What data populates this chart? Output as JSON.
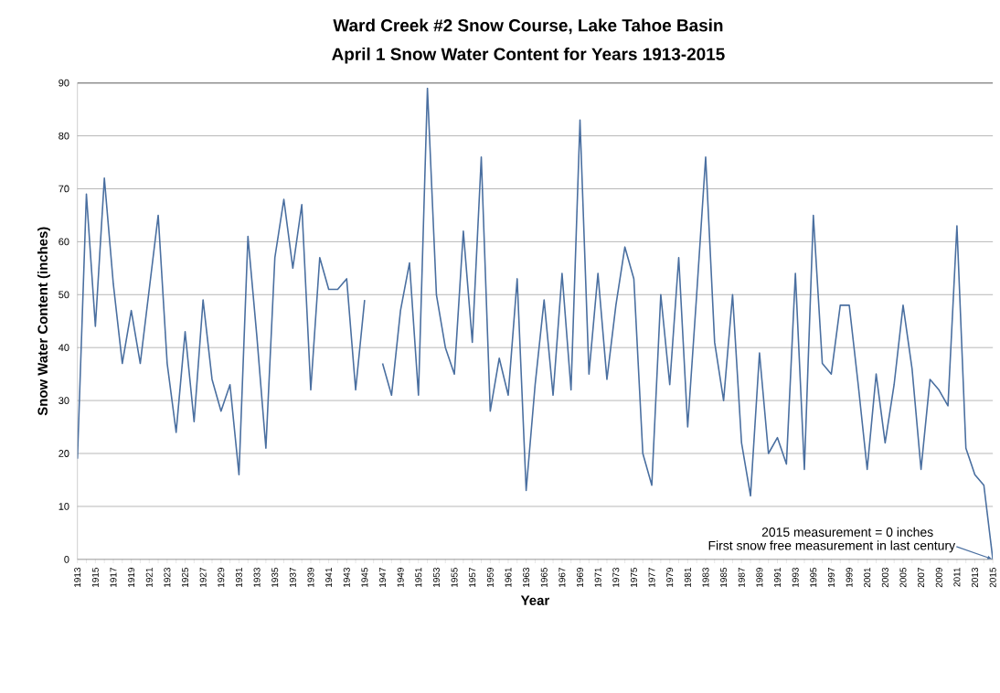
{
  "chart_data": {
    "type": "line",
    "title": "Ward Creek #2 Snow Course, Lake Tahoe Basin",
    "subtitle": "April 1 Snow Water Content for Years 1913-2015",
    "xlabel": "Year",
    "ylabel": "Snow Water Content (inches)",
    "categories": [
      "1913",
      null,
      "1915",
      null,
      "1917",
      null,
      "1919",
      null,
      "1921",
      null,
      "1923",
      null,
      "1925",
      null,
      "1927",
      null,
      "1929",
      null,
      "1931",
      null,
      "1933",
      null,
      "1935",
      null,
      "1937",
      null,
      "1939",
      null,
      "1941",
      null,
      "1943",
      null,
      "1945",
      null,
      "1947",
      null,
      "1949",
      null,
      "1951",
      null,
      "1953",
      null,
      "1955",
      null,
      "1957",
      null,
      "1959",
      null,
      "1961",
      null,
      "1963",
      null,
      "1965",
      null,
      "1967",
      null,
      "1969",
      null,
      "1971",
      null,
      "1973",
      null,
      "1975",
      null,
      "1977",
      null,
      "1979",
      null,
      "1981",
      null,
      "1983",
      null,
      "1985",
      null,
      "1987",
      null,
      "1989",
      null,
      "1991",
      null,
      "1993",
      null,
      "1995",
      null,
      "1997",
      null,
      "1999",
      null,
      "2001",
      null,
      "2003",
      null,
      "2005",
      null,
      "2007",
      null,
      "2009",
      null,
      "2011",
      null,
      "2013",
      null,
      "2015"
    ],
    "series": [
      {
        "color": "#4a6fa0",
        "values": [
          19,
          69,
          44,
          72,
          52,
          37,
          47,
          37,
          51,
          65,
          37,
          24,
          43,
          26,
          49,
          34,
          28,
          33,
          16,
          61,
          42,
          21,
          57,
          68,
          55,
          67,
          32,
          57,
          51,
          51,
          53,
          32,
          49,
          null,
          37,
          31,
          47,
          56,
          31,
          89,
          50,
          40,
          35,
          62,
          41,
          76,
          28,
          38,
          31,
          53,
          13,
          33,
          49,
          31,
          54,
          32,
          83,
          35,
          54,
          34,
          48,
          59,
          53,
          20,
          14,
          50,
          33,
          57,
          25,
          50,
          76,
          41,
          30,
          50,
          22,
          12,
          39,
          20,
          23,
          18,
          54,
          17,
          65,
          37,
          35,
          48,
          48,
          33,
          17,
          35,
          22,
          33,
          48,
          36,
          17,
          34,
          32,
          29,
          63,
          21,
          16,
          14,
          0
        ]
      }
    ],
    "ylim": [
      0,
      90
    ],
    "yticks": [
      0,
      10,
      20,
      30,
      40,
      50,
      60,
      70,
      80,
      90
    ],
    "grid": "y",
    "annotations": [
      "2015 measurement = 0 inches",
      {
        "text": "First snow free measurement in last century",
        "x": "2015",
        "y": 0
      }
    ]
  }
}
